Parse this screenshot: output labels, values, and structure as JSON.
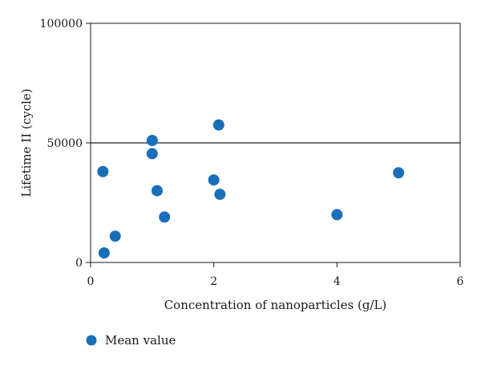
{
  "chart_data": {
    "type": "scatter",
    "xlabel": "Concentration of nanoparticles (g/L)",
    "ylabel": "Lifetime II (cycle)",
    "xlim": [
      0,
      6
    ],
    "ylim": [
      0,
      100000
    ],
    "x_ticks": [
      0,
      2,
      4,
      6
    ],
    "y_ticks": [
      0,
      50000,
      100000
    ],
    "x_tick_labels": [
      "0",
      "2",
      "4",
      "6"
    ],
    "y_tick_labels": [
      "0",
      "50000",
      "100000"
    ],
    "reference_line_y": 50000,
    "grid": false,
    "legend_position": "bottom-left",
    "series": [
      {
        "name": "Mean value",
        "color": "#1a6fb9",
        "points": [
          {
            "x": 0.22,
            "y": 4000
          },
          {
            "x": 0.2,
            "y": 38000
          },
          {
            "x": 0.4,
            "y": 11000
          },
          {
            "x": 1.0,
            "y": 51000
          },
          {
            "x": 1.0,
            "y": 45500
          },
          {
            "x": 1.08,
            "y": 30000
          },
          {
            "x": 1.2,
            "y": 19000
          },
          {
            "x": 2.0,
            "y": 34500
          },
          {
            "x": 2.08,
            "y": 57500
          },
          {
            "x": 2.1,
            "y": 28500
          },
          {
            "x": 4.0,
            "y": 20000
          },
          {
            "x": 5.0,
            "y": 37500
          }
        ]
      }
    ]
  }
}
